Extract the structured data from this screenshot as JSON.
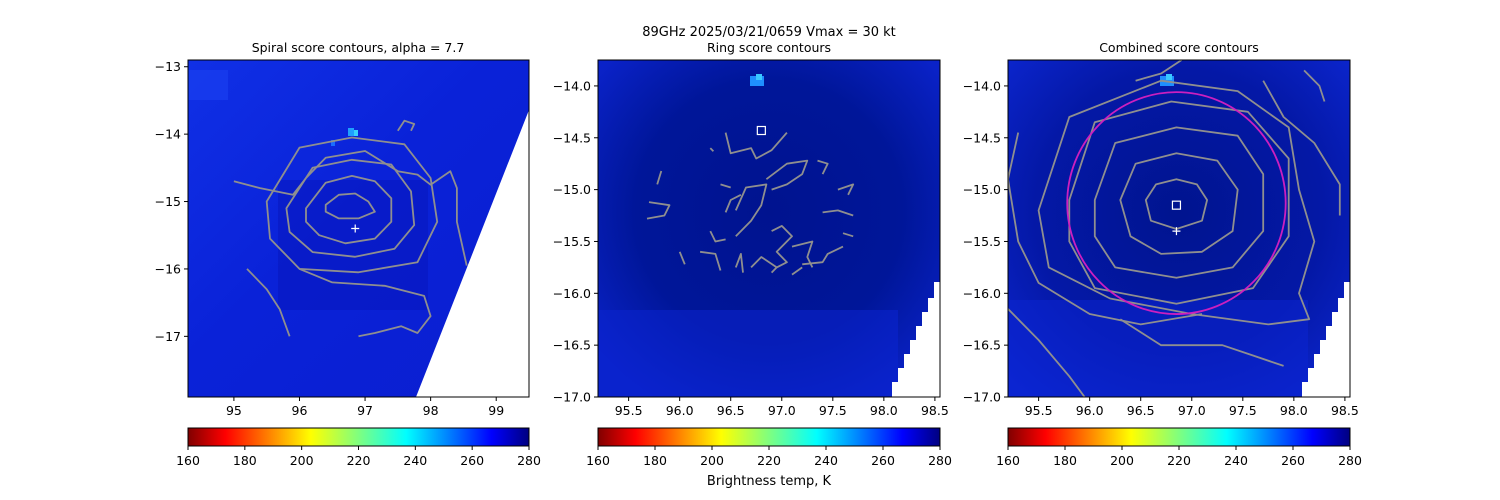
{
  "figure": {
    "suptitle_line1": "89GHz  2025/03/21/0659    Vmax = 30 kt",
    "colorbar_label": "Brightness temp, K"
  },
  "colors": {
    "contour": "#8f8f8f",
    "marker": "#ffffff",
    "ring_circle": "#cc1fbf",
    "background_field": "#0a1fd6",
    "field_dark": "#000f8a"
  },
  "chart_data": [
    {
      "type": "heatmap",
      "title": "Spiral score contours, alpha =  7.7",
      "xlim": [
        94.3,
        99.5
      ],
      "ylim": [
        -17.9,
        -12.9
      ],
      "xticks": [
        95,
        96,
        97,
        98,
        99
      ],
      "xtick_labels": [
        "95",
        "96",
        "97",
        "98",
        "99"
      ],
      "yticks": [
        -13,
        -14,
        -15,
        -16,
        -17
      ],
      "ytick_labels": [
        "−13",
        "−14",
        "−15",
        "−16",
        "−17"
      ],
      "center_plus": [
        96.85,
        -15.4
      ],
      "contours": [
        [
          [
            96.4,
            -15.05
          ],
          [
            96.6,
            -14.9
          ],
          [
            96.85,
            -14.88
          ],
          [
            97.05,
            -15.0
          ],
          [
            97.15,
            -15.15
          ],
          [
            96.9,
            -15.25
          ],
          [
            96.6,
            -15.25
          ],
          [
            96.4,
            -15.15
          ]
        ],
        [
          [
            96.1,
            -15.1
          ],
          [
            96.4,
            -14.72
          ],
          [
            96.8,
            -14.62
          ],
          [
            97.15,
            -14.7
          ],
          [
            97.4,
            -14.95
          ],
          [
            97.4,
            -15.3
          ],
          [
            97.15,
            -15.55
          ],
          [
            96.7,
            -15.62
          ],
          [
            96.3,
            -15.5
          ],
          [
            96.1,
            -15.3
          ]
        ],
        [
          [
            95.8,
            -15.1
          ],
          [
            96.2,
            -14.5
          ],
          [
            96.8,
            -14.38
          ],
          [
            97.4,
            -14.45
          ],
          [
            97.7,
            -14.85
          ],
          [
            97.75,
            -15.35
          ],
          [
            97.45,
            -15.7
          ],
          [
            96.85,
            -15.82
          ],
          [
            96.2,
            -15.75
          ],
          [
            95.85,
            -15.45
          ]
        ],
        [
          [
            95.5,
            -15.0
          ],
          [
            96.0,
            -14.2
          ],
          [
            96.8,
            -14.05
          ],
          [
            97.6,
            -14.15
          ],
          [
            98.0,
            -14.65
          ],
          [
            98.1,
            -15.3
          ],
          [
            97.8,
            -15.9
          ],
          [
            96.9,
            -16.05
          ],
          [
            96.0,
            -16.0
          ],
          [
            95.55,
            -15.55
          ]
        ]
      ],
      "open_contours": [
        [
          [
            95.0,
            -14.7
          ],
          [
            95.4,
            -14.8
          ],
          [
            95.9,
            -14.9
          ],
          [
            96.1,
            -14.65
          ],
          [
            96.4,
            -14.35
          ],
          [
            97.0,
            -14.25
          ],
          [
            97.5,
            -14.55
          ],
          [
            97.8,
            -14.6
          ],
          [
            98.0,
            -14.75
          ],
          [
            98.3,
            -14.55
          ],
          [
            98.4,
            -14.8
          ],
          [
            98.4,
            -15.3
          ],
          [
            98.55,
            -15.95
          ]
        ],
        [
          [
            95.2,
            -16.0
          ],
          [
            95.5,
            -16.3
          ],
          [
            95.7,
            -16.6
          ],
          [
            95.85,
            -17.0
          ]
        ],
        [
          [
            96.0,
            -16.0
          ],
          [
            96.5,
            -16.2
          ],
          [
            97.3,
            -16.25
          ],
          [
            97.9,
            -16.4
          ],
          [
            98.0,
            -16.7
          ],
          [
            97.8,
            -16.95
          ],
          [
            97.55,
            -16.85
          ],
          [
            97.15,
            -16.95
          ],
          [
            96.9,
            -17.0
          ]
        ],
        [
          [
            97.5,
            -13.95
          ],
          [
            97.6,
            -13.8
          ],
          [
            97.75,
            -13.85
          ],
          [
            97.7,
            -13.95
          ]
        ]
      ],
      "colorbar_ticks": [
        "160",
        "180",
        "200",
        "220",
        "240",
        "260",
        "280"
      ]
    },
    {
      "type": "heatmap",
      "title": "Ring score contours",
      "xlim": [
        95.2,
        98.55
      ],
      "ylim": [
        -17.0,
        -13.75
      ],
      "xticks": [
        95.5,
        96.0,
        96.5,
        97.0,
        97.5,
        98.0,
        98.5
      ],
      "xtick_labels": [
        "95.5",
        "96.0",
        "96.5",
        "97.0",
        "97.5",
        "98.0",
        "98.5"
      ],
      "yticks": [
        -14.0,
        -14.5,
        -15.0,
        -15.5,
        -16.0,
        -16.5,
        -17.0
      ],
      "ytick_labels": [
        "−14.0",
        "−14.5",
        "−15.0",
        "−15.5",
        "−16.0",
        "−16.5",
        "−17.0"
      ],
      "center_square": [
        96.8,
        -14.43
      ],
      "open_contours": [
        [
          [
            96.45,
            -14.45
          ],
          [
            96.5,
            -14.65
          ],
          [
            96.7,
            -14.6
          ],
          [
            96.75,
            -14.7
          ],
          [
            96.9,
            -14.62
          ],
          [
            97.05,
            -14.45
          ]
        ],
        [
          [
            96.55,
            -15.2
          ],
          [
            96.65,
            -14.98
          ],
          [
            96.85,
            -14.95
          ],
          [
            96.8,
            -15.15
          ],
          [
            96.7,
            -15.3
          ],
          [
            96.6,
            -15.4
          ],
          [
            96.55,
            -15.45
          ]
        ],
        [
          [
            96.85,
            -14.9
          ],
          [
            97.05,
            -14.75
          ],
          [
            97.25,
            -14.72
          ],
          [
            97.2,
            -14.85
          ],
          [
            97.05,
            -14.95
          ],
          [
            96.9,
            -15.0
          ]
        ],
        [
          [
            96.9,
            -15.4
          ],
          [
            97.0,
            -15.35
          ],
          [
            97.1,
            -15.45
          ],
          [
            96.95,
            -15.6
          ],
          [
            97.05,
            -15.7
          ],
          [
            96.95,
            -15.75
          ]
        ],
        [
          [
            96.7,
            -15.75
          ],
          [
            96.8,
            -15.65
          ],
          [
            96.95,
            -15.75
          ],
          [
            96.9,
            -15.8
          ]
        ],
        [
          [
            97.1,
            -15.55
          ],
          [
            97.3,
            -15.5
          ],
          [
            97.25,
            -15.65
          ],
          [
            97.3,
            -15.75
          ]
        ],
        [
          [
            96.2,
            -15.6
          ],
          [
            96.35,
            -15.62
          ],
          [
            96.4,
            -15.78
          ]
        ],
        [
          [
            95.7,
            -15.12
          ],
          [
            95.9,
            -15.15
          ],
          [
            95.85,
            -15.25
          ],
          [
            95.68,
            -15.28
          ]
        ],
        [
          [
            97.55,
            -15.0
          ],
          [
            97.7,
            -14.95
          ],
          [
            97.65,
            -15.05
          ]
        ],
        [
          [
            97.35,
            -14.72
          ],
          [
            97.45,
            -14.75
          ],
          [
            97.4,
            -14.85
          ]
        ],
        [
          [
            97.4,
            -15.22
          ],
          [
            97.55,
            -15.2
          ],
          [
            97.7,
            -15.25
          ]
        ],
        [
          [
            96.3,
            -15.4
          ],
          [
            96.35,
            -15.5
          ],
          [
            96.45,
            -15.48
          ]
        ],
        [
          [
            97.2,
            -15.72
          ],
          [
            97.4,
            -15.7
          ],
          [
            97.45,
            -15.62
          ],
          [
            97.6,
            -15.55
          ]
        ],
        [
          [
            96.6,
            -15.05
          ],
          [
            96.5,
            -15.1
          ],
          [
            96.45,
            -15.22
          ]
        ],
        [
          [
            95.82,
            -14.82
          ],
          [
            95.78,
            -14.95
          ]
        ],
        [
          [
            96.55,
            -15.75
          ],
          [
            96.6,
            -15.62
          ],
          [
            96.62,
            -15.8
          ]
        ],
        [
          [
            97.1,
            -15.82
          ],
          [
            97.2,
            -15.75
          ]
        ],
        [
          [
            96.4,
            -14.95
          ],
          [
            96.5,
            -14.98
          ]
        ],
        [
          [
            97.6,
            -15.42
          ],
          [
            97.7,
            -15.45
          ]
        ],
        [
          [
            96.0,
            -15.6
          ],
          [
            96.05,
            -15.72
          ]
        ],
        [
          [
            96.3,
            -14.6
          ],
          [
            96.33,
            -14.63
          ]
        ]
      ],
      "colorbar_ticks": [
        "160",
        "180",
        "200",
        "220",
        "240",
        "260",
        "280"
      ]
    },
    {
      "type": "heatmap",
      "title": "Combined score contours",
      "xlim": [
        95.2,
        98.55
      ],
      "ylim": [
        -17.0,
        -13.75
      ],
      "xticks": [
        95.5,
        96.0,
        96.5,
        97.0,
        97.5,
        98.0,
        98.5
      ],
      "xtick_labels": [
        "95.5",
        "96.0",
        "96.5",
        "97.0",
        "97.5",
        "98.0",
        "98.5"
      ],
      "yticks": [
        -14.0,
        -14.5,
        -15.0,
        -15.5,
        -16.0,
        -16.5,
        -17.0
      ],
      "ytick_labels": [
        "−14.0",
        "−14.5",
        "−15.0",
        "−15.5",
        "−16.0",
        "−16.5",
        "−17.0"
      ],
      "center_plus": [
        96.85,
        -15.4
      ],
      "center_square": [
        96.85,
        -15.15
      ],
      "ring_center": [
        96.85,
        -15.13
      ],
      "ring_radius_deg": 1.07,
      "contours": [
        [
          [
            96.55,
            -15.1
          ],
          [
            96.65,
            -14.95
          ],
          [
            96.85,
            -14.9
          ],
          [
            97.05,
            -14.95
          ],
          [
            97.15,
            -15.1
          ],
          [
            97.1,
            -15.3
          ],
          [
            96.85,
            -15.38
          ],
          [
            96.6,
            -15.3
          ]
        ],
        [
          [
            96.3,
            -15.1
          ],
          [
            96.45,
            -14.75
          ],
          [
            96.85,
            -14.65
          ],
          [
            97.25,
            -14.72
          ],
          [
            97.45,
            -15.0
          ],
          [
            97.4,
            -15.4
          ],
          [
            97.1,
            -15.6
          ],
          [
            96.7,
            -15.62
          ],
          [
            96.4,
            -15.45
          ]
        ],
        [
          [
            96.05,
            -15.1
          ],
          [
            96.25,
            -14.55
          ],
          [
            96.85,
            -14.4
          ],
          [
            97.45,
            -14.48
          ],
          [
            97.7,
            -14.85
          ],
          [
            97.7,
            -15.4
          ],
          [
            97.4,
            -15.75
          ],
          [
            96.85,
            -15.85
          ],
          [
            96.25,
            -15.75
          ],
          [
            96.05,
            -15.45
          ]
        ],
        [
          [
            95.8,
            -15.1
          ],
          [
            96.05,
            -14.35
          ],
          [
            96.8,
            -14.15
          ],
          [
            97.55,
            -14.25
          ],
          [
            97.95,
            -14.7
          ],
          [
            97.95,
            -15.45
          ],
          [
            97.6,
            -15.95
          ],
          [
            96.85,
            -16.1
          ],
          [
            96.05,
            -15.95
          ],
          [
            95.8,
            -15.5
          ]
        ],
        [
          [
            95.5,
            -15.2
          ],
          [
            95.8,
            -14.3
          ],
          [
            96.7,
            -13.95
          ],
          [
            97.45,
            -14.05
          ],
          [
            97.95,
            -14.4
          ],
          [
            98.05,
            -15.0
          ],
          [
            98.2,
            -15.5
          ],
          [
            98.05,
            -16.0
          ],
          [
            98.15,
            -16.25
          ],
          [
            97.75,
            -16.3
          ],
          [
            97.0,
            -16.2
          ],
          [
            96.2,
            -16.05
          ],
          [
            95.6,
            -15.75
          ]
        ]
      ],
      "open_contours": [
        [
          [
            95.3,
            -14.45
          ],
          [
            95.2,
            -14.9
          ],
          [
            95.3,
            -15.5
          ],
          [
            95.5,
            -15.9
          ],
          [
            96.0,
            -16.2
          ],
          [
            96.5,
            -16.3
          ],
          [
            97.1,
            -16.2
          ]
        ],
        [
          [
            97.7,
            -13.95
          ],
          [
            97.9,
            -14.3
          ],
          [
            98.2,
            -14.55
          ],
          [
            98.45,
            -14.95
          ],
          [
            98.45,
            -15.25
          ]
        ],
        [
          [
            98.1,
            -13.85
          ],
          [
            98.25,
            -14.0
          ],
          [
            98.3,
            -14.15
          ]
        ],
        [
          [
            96.45,
            -13.95
          ],
          [
            96.7,
            -13.88
          ],
          [
            96.9,
            -13.75
          ]
        ],
        [
          [
            95.2,
            -16.15
          ],
          [
            95.5,
            -16.45
          ],
          [
            95.8,
            -16.8
          ],
          [
            95.95,
            -17.0
          ]
        ],
        [
          [
            96.3,
            -16.25
          ],
          [
            96.7,
            -16.5
          ],
          [
            97.3,
            -16.5
          ],
          [
            97.6,
            -16.6
          ],
          [
            97.9,
            -16.7
          ]
        ]
      ],
      "colorbar_ticks": [
        "160",
        "180",
        "200",
        "220",
        "240",
        "260",
        "280"
      ]
    }
  ]
}
